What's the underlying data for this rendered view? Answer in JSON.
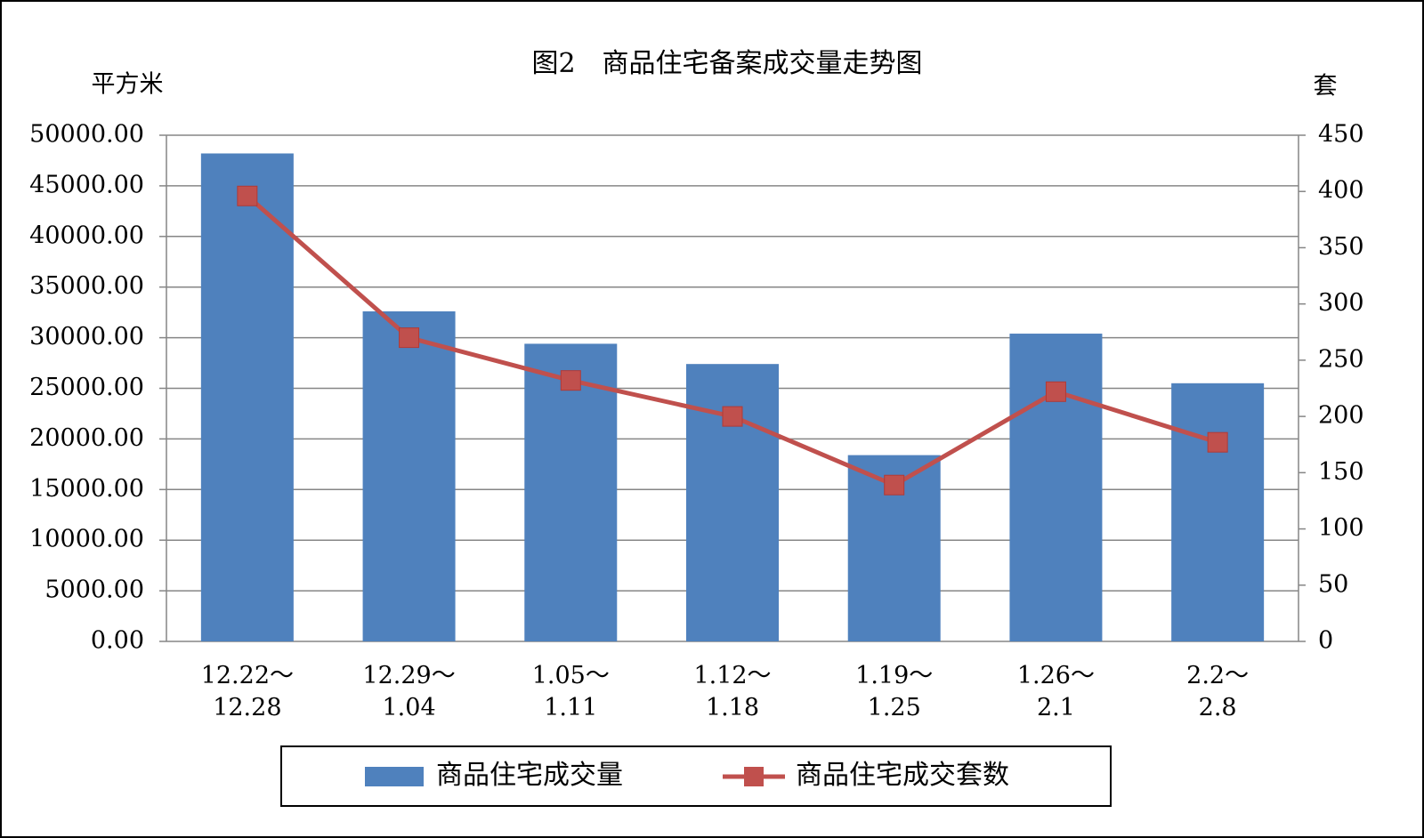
{
  "chart_data": {
    "type": "bar-line",
    "title": "图2　商品住宅备案成交量走势图",
    "y_label": "平方米",
    "y2_label": "套",
    "categories": [
      "12.22～\n12.28",
      "12.29～\n1.04",
      "1.05～\n1.11",
      "1.12～\n1.18",
      "1.19～\n1.25",
      "1.26～\n2.1",
      "2.2～\n2.8"
    ],
    "series": [
      {
        "name": "商品住宅成交量",
        "type": "bar",
        "color": "#4f81bd",
        "values": [
          48200,
          32600,
          29400,
          27400,
          18400,
          30400,
          25500
        ]
      },
      {
        "name": "商品住宅成交套数",
        "type": "line",
        "axis": "y2",
        "color": "#c0504d",
        "values": [
          396,
          270,
          232,
          200,
          139,
          222,
          177
        ]
      }
    ],
    "ylim": [
      0,
      50000
    ],
    "yticks": [
      {
        "value": 0,
        "label": "0.00"
      },
      {
        "value": 5000,
        "label": "5000.00"
      },
      {
        "value": 10000,
        "label": "10000.00"
      },
      {
        "value": 15000,
        "label": "15000.00"
      },
      {
        "value": 20000,
        "label": "20000.00"
      },
      {
        "value": 25000,
        "label": "25000.00"
      },
      {
        "value": 30000,
        "label": "30000.00"
      },
      {
        "value": 35000,
        "label": "35000.00"
      },
      {
        "value": 40000,
        "label": "40000.00"
      },
      {
        "value": 45000,
        "label": "45000.00"
      },
      {
        "value": 50000,
        "label": "50000.00"
      }
    ],
    "y2lim": [
      0,
      450
    ],
    "y2ticks": [
      0,
      50,
      100,
      150,
      200,
      250,
      300,
      350,
      400,
      450
    ],
    "grid": true,
    "legend": "bottom"
  }
}
